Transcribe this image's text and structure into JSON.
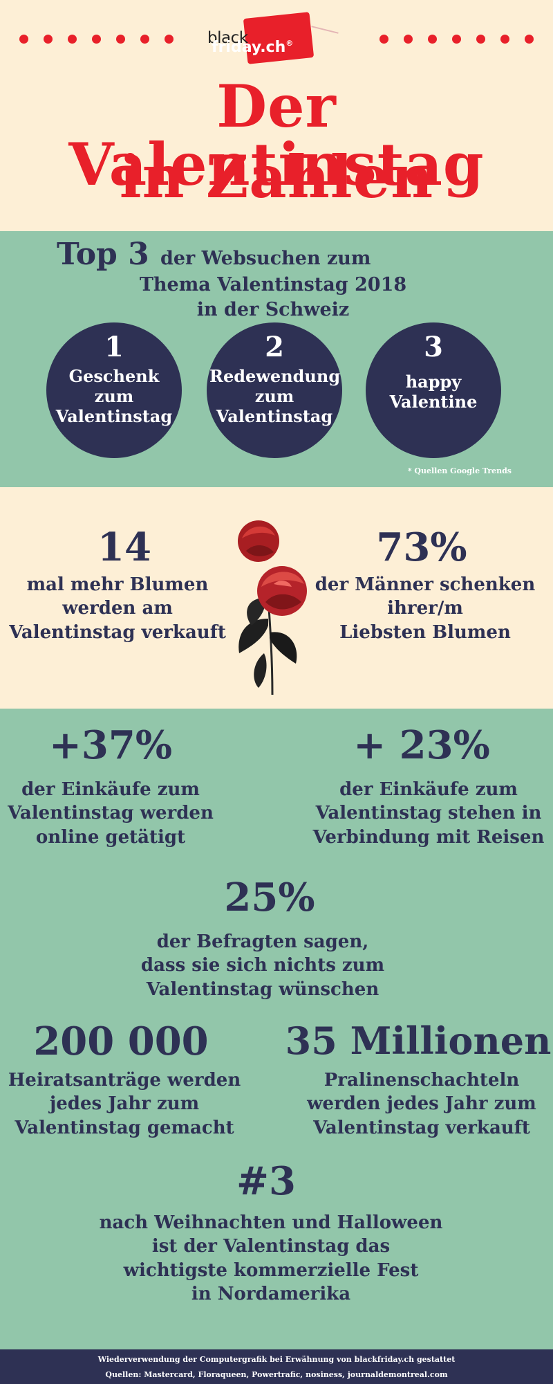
{
  "header": {
    "logo_black": "black",
    "logo_red": "friday.ch",
    "logo_reg": "®",
    "title_line1": "Der Valentinstag",
    "title_line2": "in Zahlen"
  },
  "top3": {
    "heading_big": "Top 3",
    "heading_line1": "der Websuchen zum",
    "heading_line2": "Thema Valentinstag 2018",
    "heading_line3": "in der Schweiz",
    "items": [
      {
        "rank": "1",
        "label": "Geschenk zum Valentinstag"
      },
      {
        "rank": "2",
        "label": "Redewendung zum Valentinstag"
      },
      {
        "rank": "3",
        "label": "happy Valentine"
      }
    ],
    "source": "* Quellen Google Trends"
  },
  "flowers": {
    "left_num": "14",
    "left_text": [
      "mal mehr Blumen",
      "werden am",
      "Valentinstag verkauft"
    ],
    "right_num": "73%",
    "right_text": [
      "der Männer schenken",
      "ihrer/m",
      "Liebsten Blumen"
    ]
  },
  "stats": {
    "online_num": "+37%",
    "online_text": [
      "der Einkäufe zum",
      "Valentinstag werden",
      "online getätigt"
    ],
    "travel_num": "+ 23%",
    "travel_text": [
      "der Einkäufe zum",
      "Valentinstag stehen in",
      "Verbindung mit Reisen"
    ],
    "nothing_num": "25%",
    "nothing_text": [
      "der Befragten sagen,",
      "dass sie sich nichts zum",
      "Valentinstag wünschen"
    ],
    "proposals_num": "200 000",
    "proposals_text": [
      "Heiratsanträge werden",
      "jedes Jahr zum",
      "Valentinstag gemacht"
    ],
    "chocolate_num": "35 Millionen",
    "chocolate_text": [
      "Pralinenschachteln",
      "werden jedes Jahr zum",
      "Valentinstag verkauft"
    ],
    "rank_num": "#3",
    "rank_text": [
      "nach Weihnachten und Halloween",
      "ist der Valentinstag das",
      "wichtigste kommerzielle Fest",
      "in Nordamerika"
    ]
  },
  "footer": {
    "line1": "Wiederverwendung der Computergrafik bei Erwähnung von blackfriday.ch gestattet",
    "line2": "Quellen: Mastercard, Floraqueen, Powertrafic, nosiness, journaldemontreal.com"
  },
  "colors": {
    "red": "#e8202a",
    "cream": "#fdefd6",
    "green": "#92c6aa",
    "navy": "#2e3154"
  }
}
